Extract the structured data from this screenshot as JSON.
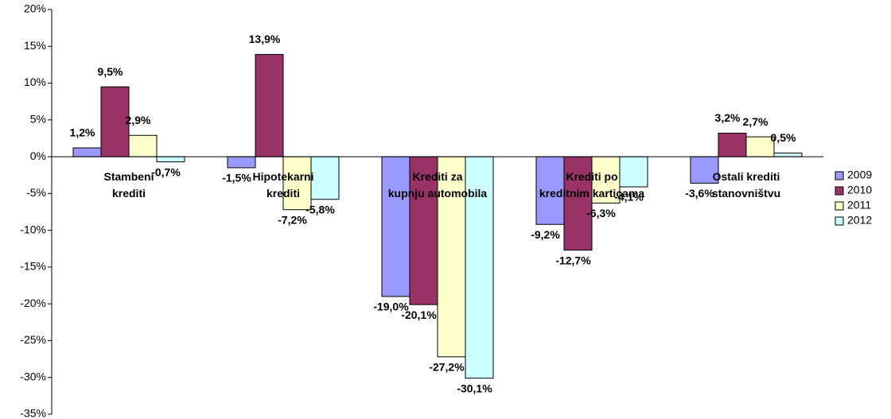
{
  "chart_data": {
    "type": "bar",
    "categories": [
      [
        "Stambeni",
        "krediti"
      ],
      [
        "Hipotekarni",
        "krediti"
      ],
      [
        "Krediti za",
        "kupnju automobila"
      ],
      [
        "Krediti po",
        "kreditnim karticama"
      ],
      [
        "Ostali krediti",
        "stanovništvu"
      ]
    ],
    "series": [
      {
        "name": "2009",
        "color": "#9999ff",
        "values": [
          1.2,
          -1.5,
          -19.0,
          -9.2,
          -3.6
        ],
        "value_labels": [
          "1,2%",
          "-1,5%",
          "-19,0%",
          "-9,2%",
          "-3,6%"
        ]
      },
      {
        "name": "2010",
        "color": "#993366",
        "values": [
          9.5,
          13.9,
          -20.1,
          -12.7,
          3.2
        ],
        "value_labels": [
          "9,5%",
          "13,9%",
          "-20,1%",
          "-12,7%",
          "3,2%"
        ]
      },
      {
        "name": "2011",
        "color": "#ffffcc",
        "values": [
          2.9,
          -7.2,
          -27.2,
          -6.3,
          2.7
        ],
        "value_labels": [
          "2,9%",
          "-7,2%",
          "-27,2%",
          "-6,3%",
          "2,7%"
        ]
      },
      {
        "name": "2012",
        "color": "#ccffff",
        "values": [
          -0.7,
          -5.8,
          -30.1,
          -4.1,
          0.5
        ],
        "value_labels": [
          "-0,7%",
          "-5,8%",
          "-30,1%",
          "-4,1%",
          "0,5%"
        ]
      }
    ],
    "ylim": [
      -35,
      20
    ],
    "yticks": [
      {
        "value": -35,
        "label": "-35%"
      },
      {
        "value": -30,
        "label": "-30%"
      },
      {
        "value": -25,
        "label": "-25%"
      },
      {
        "value": -20,
        "label": "-20%"
      },
      {
        "value": -15,
        "label": "-15%"
      },
      {
        "value": -10,
        "label": "-10%"
      },
      {
        "value": -5,
        "label": "-5%"
      },
      {
        "value": 0,
        "label": "0%"
      },
      {
        "value": 5,
        "label": "5%"
      },
      {
        "value": 10,
        "label": "10%"
      },
      {
        "value": 15,
        "label": "15%"
      },
      {
        "value": 20,
        "label": "20%"
      }
    ],
    "legend": "right"
  }
}
